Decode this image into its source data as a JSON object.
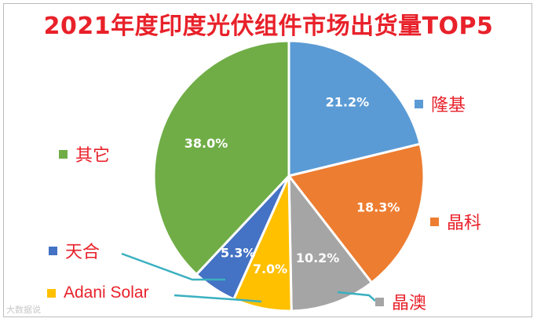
{
  "title": "2021年度印度光伏组件市场出货量TOP5",
  "watermark": "大数据说",
  "chart_data": {
    "type": "pie",
    "slices": [
      {
        "name": "隆基",
        "value": 21.2,
        "label": "21.2%",
        "color": "#5b9bd5"
      },
      {
        "name": "晶科",
        "value": 18.3,
        "label": "18.3%",
        "color": "#ed7d31"
      },
      {
        "name": "晶澳",
        "value": 10.2,
        "label": "10.2%",
        "color": "#a5a5a5"
      },
      {
        "name": "Adani Solar",
        "value": 7.0,
        "label": "7.0%",
        "color": "#ffc000"
      },
      {
        "name": "天合",
        "value": 5.3,
        "label": "5.3%",
        "color": "#4472c4"
      },
      {
        "name": "其它",
        "value": 38.0,
        "label": "38.0%",
        "color": "#70ad47"
      }
    ],
    "legend": [
      {
        "name": "隆基",
        "color": "#5b9bd5"
      },
      {
        "name": "晶科",
        "color": "#ed7d31"
      },
      {
        "name": "晶澳",
        "color": "#a5a5a5"
      },
      {
        "name": "Adani Solar",
        "color": "#ffc000"
      },
      {
        "name": "天合",
        "color": "#4472c4"
      },
      {
        "name": "其它",
        "color": "#70ad47"
      }
    ],
    "leader_line_color": "#3ab0c0",
    "legend_placement": "around pie"
  }
}
